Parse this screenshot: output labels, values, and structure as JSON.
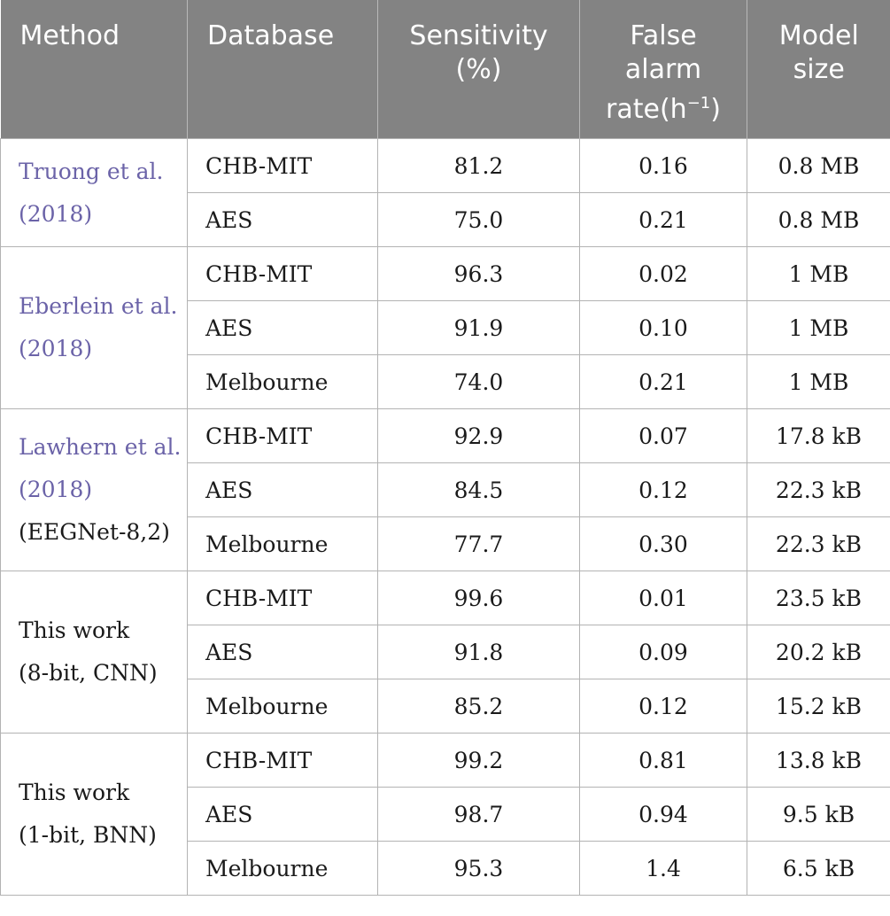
{
  "headers": {
    "method": "Method",
    "database": "Database",
    "sensitivity_line1": "Sensitivity",
    "sensitivity_line2": "(%)",
    "far_line1": "False",
    "far_line2": "alarm",
    "far_line3": "rate(h",
    "far_sup": "−1",
    "far_close": ")",
    "size_line1": "Model",
    "size_line2": "size"
  },
  "groups": [
    {
      "method_line1": "Truong et al.",
      "method_line2": "(2018)",
      "method_line3": "",
      "rows": [
        {
          "database": "CHB-MIT",
          "sensitivity": "81.2",
          "false_alarm_rate": "0.16",
          "model_size": "0.8 MB"
        },
        {
          "database": "AES",
          "sensitivity": "75.0",
          "false_alarm_rate": "0.21",
          "model_size": "0.8 MB"
        }
      ]
    },
    {
      "method_line1": "Eberlein et al.",
      "method_line2": "(2018)",
      "method_line3": "",
      "rows": [
        {
          "database": "CHB-MIT",
          "sensitivity": "96.3",
          "false_alarm_rate": "0.02",
          "model_size": "1 MB"
        },
        {
          "database": "AES",
          "sensitivity": "91.9",
          "false_alarm_rate": "0.10",
          "model_size": "1 MB"
        },
        {
          "database": "Melbourne",
          "sensitivity": "74.0",
          "false_alarm_rate": "0.21",
          "model_size": "1 MB"
        }
      ]
    },
    {
      "method_line1": "Lawhern et al.",
      "method_line2": "(2018)",
      "method_line3": "(EEGNet-8,2)",
      "rows": [
        {
          "database": "CHB-MIT",
          "sensitivity": "92.9",
          "false_alarm_rate": "0.07",
          "model_size": "17.8 kB"
        },
        {
          "database": "AES",
          "sensitivity": "84.5",
          "false_alarm_rate": "0.12",
          "model_size": "22.3 kB"
        },
        {
          "database": "Melbourne",
          "sensitivity": "77.7",
          "false_alarm_rate": "0.30",
          "model_size": "22.3 kB"
        }
      ]
    },
    {
      "method_line1": "This work",
      "method_line2": "(8-bit, CNN)",
      "method_line3": "",
      "rows": [
        {
          "database": "CHB-MIT",
          "sensitivity": "99.6",
          "false_alarm_rate": "0.01",
          "model_size": "23.5 kB"
        },
        {
          "database": "AES",
          "sensitivity": "91.8",
          "false_alarm_rate": "0.09",
          "model_size": "20.2 kB"
        },
        {
          "database": "Melbourne",
          "sensitivity": "85.2",
          "false_alarm_rate": "0.12",
          "model_size": "15.2 kB"
        }
      ]
    },
    {
      "method_line1": "This work",
      "method_line2": "(1-bit, BNN)",
      "method_line3": "",
      "rows": [
        {
          "database": "CHB-MIT",
          "sensitivity": "99.2",
          "false_alarm_rate": "0.81",
          "model_size": "13.8 kB"
        },
        {
          "database": "AES",
          "sensitivity": "98.7",
          "false_alarm_rate": "0.94",
          "model_size": "9.5 kB"
        },
        {
          "database": "Melbourne",
          "sensitivity": "95.3",
          "false_alarm_rate": "1.4",
          "model_size": "6.5 kB"
        }
      ]
    }
  ],
  "colors": {
    "header_bg": "#838383",
    "citation_link": "#6b63a8",
    "grid": "#b3b3b3"
  }
}
